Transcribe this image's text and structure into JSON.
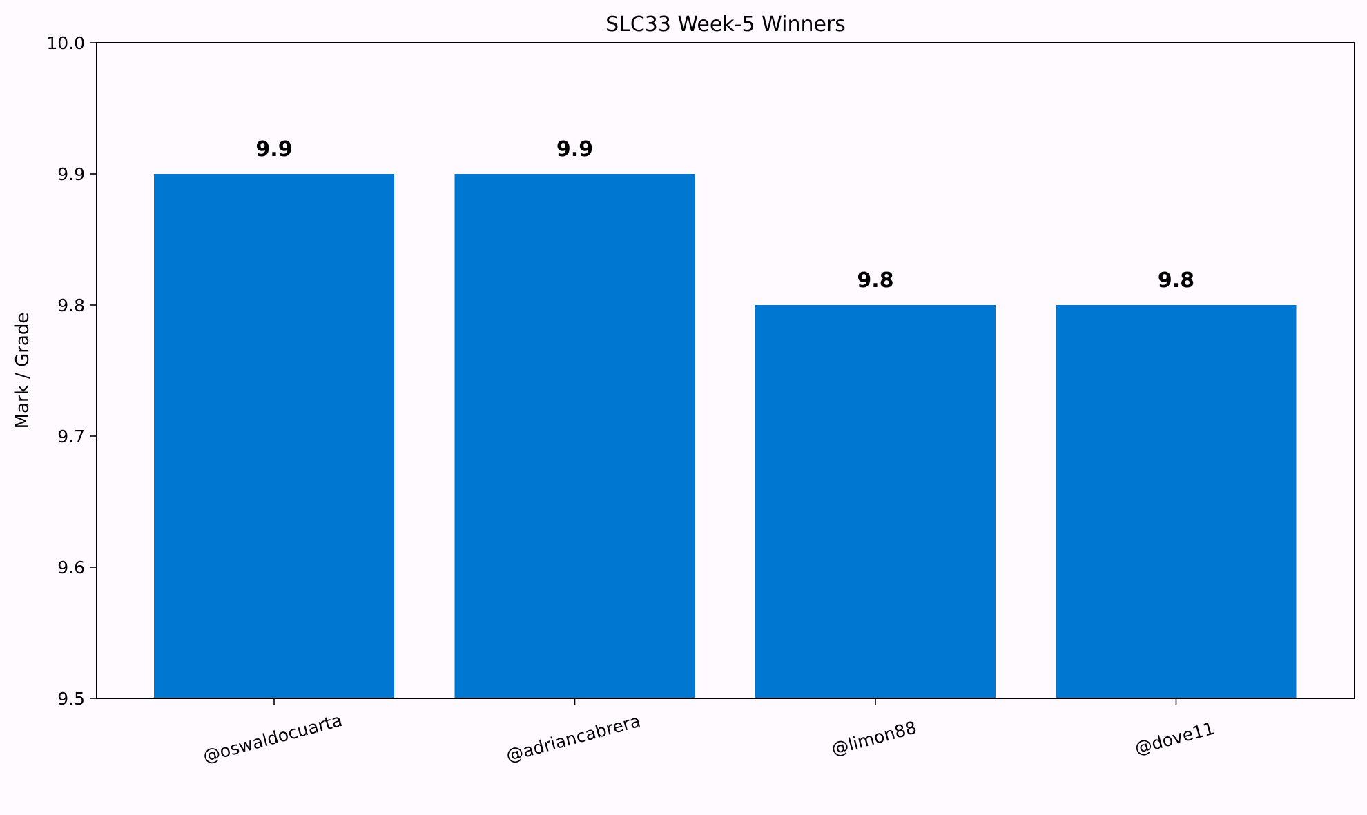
{
  "chart_data": {
    "type": "bar",
    "title": "SLC33 Week-5 Winners",
    "xlabel": "",
    "ylabel": "Mark / Grade",
    "categories": [
      "@oswaldocuarta",
      "@adriancabrera",
      "@limon88",
      "@dove11"
    ],
    "values": [
      9.9,
      9.9,
      9.8,
      9.8
    ],
    "data_labels": [
      "9.9",
      "9.9",
      "9.8",
      "9.8"
    ],
    "ylim": [
      9.5,
      10.0
    ],
    "yticks": [
      9.5,
      9.6,
      9.7,
      9.8,
      9.9,
      10.0
    ],
    "ytick_labels": [
      "9.5",
      "9.6",
      "9.7",
      "9.8",
      "9.9",
      "10.0"
    ],
    "bar_color": "#0077d0",
    "background_color": "#fefaff",
    "grid": false,
    "legend": "none"
  }
}
